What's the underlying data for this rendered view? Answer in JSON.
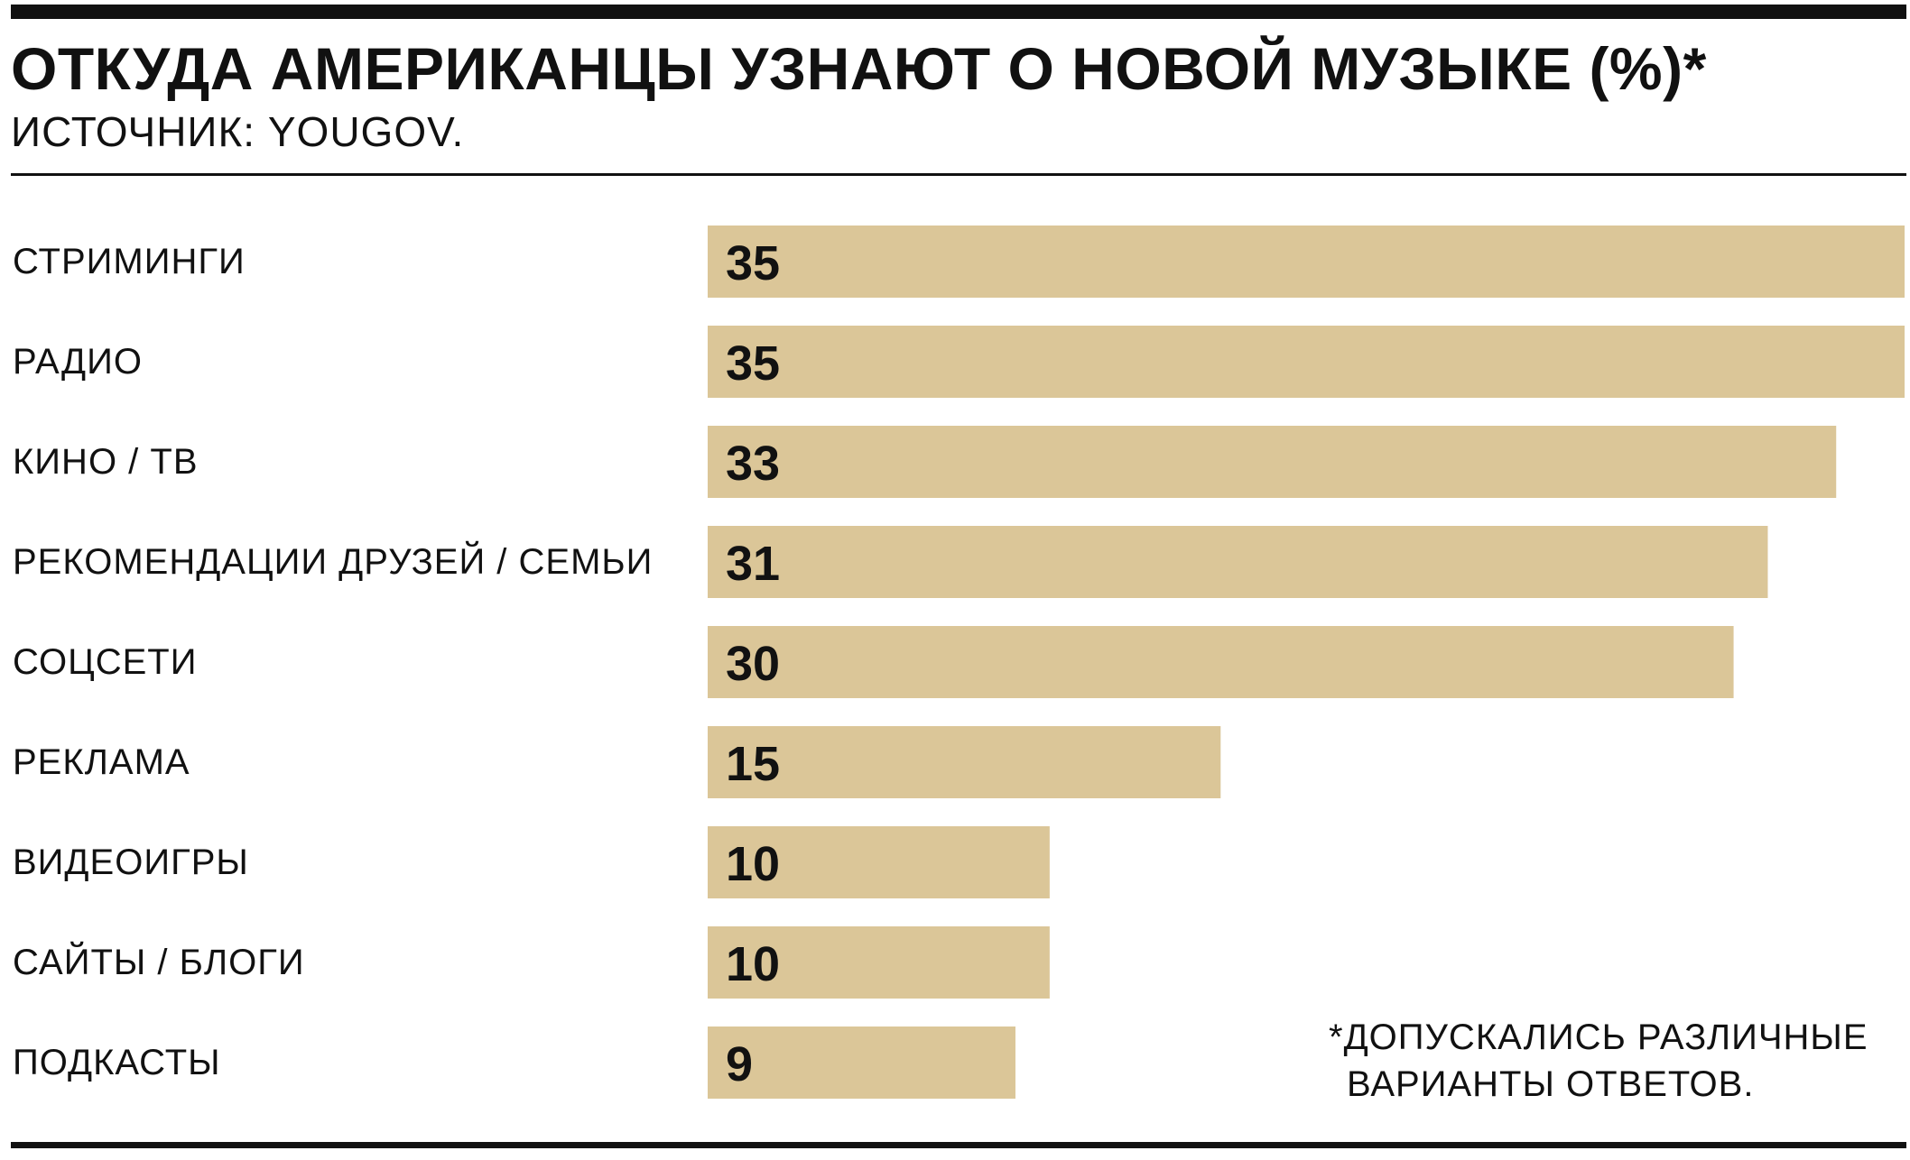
{
  "header": {
    "title": "ОТКУДА АМЕРИКАНЦЫ УЗНАЮТ О НОВОЙ МУЗЫКЕ (%)*",
    "subtitle": "ИСТОЧНИК: YOUGOV."
  },
  "footnote": {
    "line1": "*ДОПУСКАЛИСЬ РАЗЛИЧНЫЕ",
    "line2": "ВАРИАНТЫ ОТВЕТОВ."
  },
  "colors": {
    "bar": "#DBC698",
    "text": "#111111",
    "background": "#FFFFFF"
  },
  "chart_data": {
    "type": "bar",
    "orientation": "horizontal",
    "title": "ОТКУДА АМЕРИКАНЦЫ УЗНАЮТ О НОВОЙ МУЗЫКЕ (%)*",
    "subtitle": "ИСТОЧНИК: YOUGOV.",
    "categories": [
      "СТРИМИНГИ",
      "РАДИО",
      "КИНО / ТВ",
      "РЕКОМЕНДАЦИИ ДРУЗЕЙ / СЕМЬИ",
      "СОЦСЕТИ",
      "РЕКЛАМА",
      "ВИДЕОИГРЫ",
      "САЙТЫ / БЛОГИ",
      "ПОДКАСТЫ"
    ],
    "values": [
      35,
      35,
      33,
      31,
      30,
      15,
      10,
      10,
      9
    ],
    "xlim": [
      0,
      35
    ],
    "grid": false,
    "legend": "none",
    "data_labels": "inside-left"
  }
}
